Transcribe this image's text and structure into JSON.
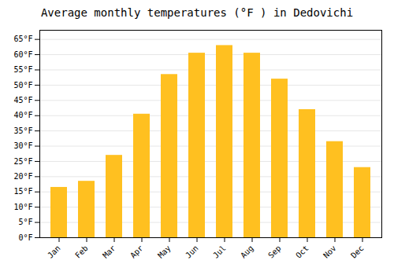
{
  "chart_data": {
    "type": "bar",
    "title": "Average monthly temperatures (°F ) in Dedovichi",
    "categories": [
      "Jan",
      "Feb",
      "Mar",
      "Apr",
      "May",
      "Jun",
      "Jul",
      "Aug",
      "Sep",
      "Oct",
      "Nov",
      "Dec"
    ],
    "values": [
      16.5,
      18.5,
      27.0,
      40.5,
      53.5,
      60.5,
      63.0,
      60.5,
      52.0,
      42.0,
      31.5,
      23.0
    ],
    "color": "#FFC020",
    "ylim": [
      0,
      68
    ],
    "yticks": [
      {
        "value": 0,
        "label": "0°F"
      },
      {
        "value": 5,
        "label": "5°F"
      },
      {
        "value": 10,
        "label": "10°F"
      },
      {
        "value": 15,
        "label": "15°F"
      },
      {
        "value": 20,
        "label": "20°F"
      },
      {
        "value": 25,
        "label": "25°F"
      },
      {
        "value": 30,
        "label": "30°F"
      },
      {
        "value": 35,
        "label": "35°F"
      },
      {
        "value": 40,
        "label": "40°F"
      },
      {
        "value": 45,
        "label": "45°F"
      },
      {
        "value": 50,
        "label": "50°F"
      },
      {
        "value": 55,
        "label": "55°F"
      },
      {
        "value": 60,
        "label": "60°F"
      },
      {
        "value": 65,
        "label": "65°F"
      }
    ],
    "grid": true
  }
}
